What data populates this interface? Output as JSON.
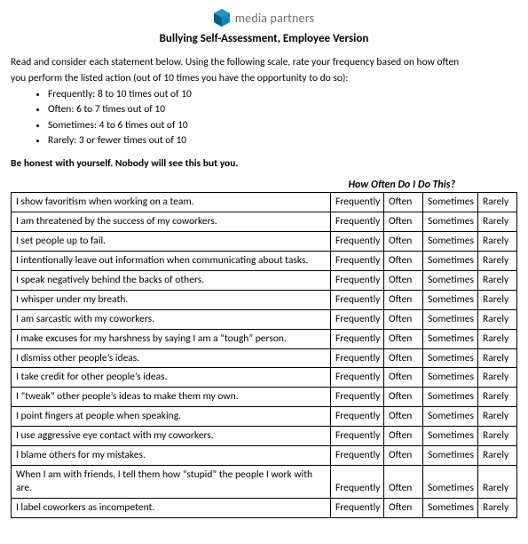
{
  "brand": {
    "name": "media partners",
    "logo_color_front": "#1799d6",
    "logo_color_back": "#0b5b8a"
  },
  "title": "Bullying Self-Assessment, Employee Version",
  "intro_line1": "Read and consider each statement below. Using the following scale, rate your frequency based on how often",
  "intro_line2": "you perform the listed action (out of 10 times you have the opportunity to do so):",
  "scale_items": [
    "Frequently: 8 to 10 times out of 10",
    "Often: 6 to 7 times out of 10",
    "Sometimes: 4 to 6 times out of 10",
    "Rarely: 3 or fewer times out of 10"
  ],
  "honest_line": "Be honest with yourself. Nobody will see this but you.",
  "table_caption": "How Often Do I Do This?",
  "option_labels": [
    "Frequently",
    "Often",
    "Sometimes",
    "Rarely"
  ],
  "statements": [
    "I show favoritism when working on a team.",
    "I am threatened by the success of my coworkers.",
    "I set people up to fail.",
    "I intentionally leave out information when communicating about tasks.",
    "I speak negatively behind the backs of others.",
    "I whisper under my breath.",
    "I am sarcastic with my coworkers.",
    "I make excuses for my harshness by saying I am a “tough” person.",
    "I dismiss other people’s ideas.",
    "I take credit for other people’s ideas.",
    "I “tweak” other people’s ideas to make them my own.",
    "I point fingers at people when speaking.",
    "I use aggressive eye contact with my coworkers.",
    "I blame others for my mistakes.",
    "When I am with friends, I tell them how “stupid” the people I work with are.",
    "I label coworkers as incompetent."
  ]
}
